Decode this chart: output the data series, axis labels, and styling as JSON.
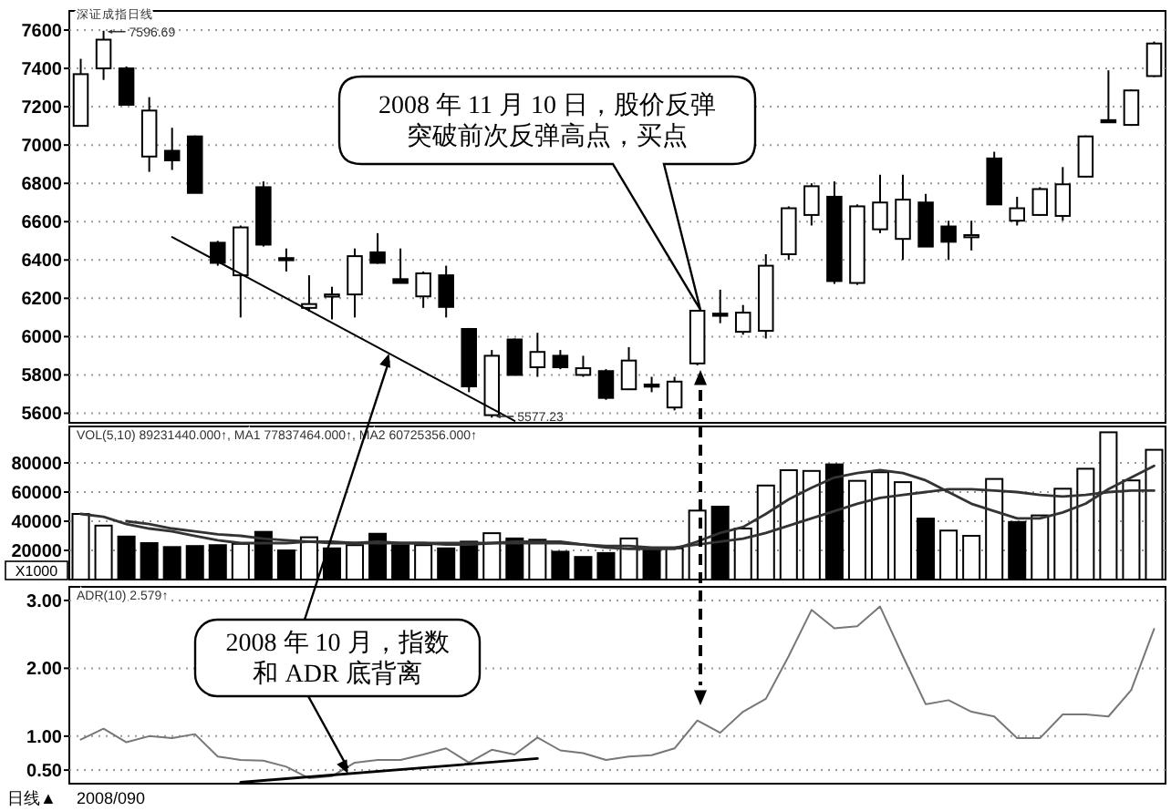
{
  "chart_data": [
    {
      "type": "candlestick",
      "title": "深证成指日线",
      "categories": [
        null,
        null,
        null,
        null,
        null,
        null,
        null,
        null,
        null,
        null,
        null,
        null,
        null,
        null,
        null,
        null,
        null,
        null,
        null,
        null,
        null,
        null,
        null,
        null,
        null,
        null,
        null,
        null,
        null,
        null,
        null,
        null,
        null,
        null,
        null,
        null,
        null,
        null,
        null,
        null,
        null,
        null,
        null,
        null,
        null,
        null,
        null,
        null
      ],
      "ohlc": [
        [
          7100,
          7450,
          7100,
          7370
        ],
        [
          7400,
          7596.69,
          7340,
          7550
        ],
        [
          7400,
          7410,
          7210,
          7210
        ],
        [
          6940,
          7250,
          6860,
          7180
        ],
        [
          6970,
          7090,
          6870,
          6920
        ],
        [
          7045,
          7050,
          6750,
          6750
        ],
        [
          6490,
          6500,
          6370,
          6385
        ],
        [
          6320,
          6580,
          6100,
          6570
        ],
        [
          6780,
          6810,
          6470,
          6480
        ],
        [
          6410,
          6460,
          6340,
          6400
        ],
        [
          6150,
          6320,
          6130,
          6170
        ],
        [
          6210,
          6260,
          6090,
          6220
        ],
        [
          6220,
          6460,
          6100,
          6420
        ],
        [
          6440,
          6540,
          6380,
          6385
        ],
        [
          6300,
          6460,
          6280,
          6280
        ],
        [
          6210,
          6340,
          6150,
          6330
        ],
        [
          6320,
          6370,
          6100,
          6155
        ],
        [
          6040,
          6045,
          5710,
          5740
        ],
        [
          5590,
          5930,
          5577.23,
          5900
        ],
        [
          5985,
          5990,
          5800,
          5800
        ],
        [
          5840,
          6020,
          5790,
          5920
        ],
        [
          5900,
          5930,
          5830,
          5840
        ],
        [
          5800,
          5900,
          5790,
          5835
        ],
        [
          5820,
          5830,
          5670,
          5680
        ],
        [
          5725,
          5945,
          5725,
          5875
        ],
        [
          5750,
          5790,
          5710,
          5745
        ],
        [
          5630,
          5790,
          5615,
          5765
        ],
        [
          5860,
          6140,
          5850,
          6135
        ],
        [
          6120,
          6245,
          6070,
          6115
        ],
        [
          6025,
          6165,
          6010,
          6125
        ],
        [
          6030,
          6430,
          5990,
          6370
        ],
        [
          6430,
          6680,
          6400,
          6670
        ],
        [
          6635,
          6800,
          6580,
          6785
        ],
        [
          6730,
          6810,
          6275,
          6290
        ],
        [
          6280,
          6690,
          6270,
          6680
        ],
        [
          6560,
          6845,
          6540,
          6700
        ],
        [
          6510,
          6845,
          6400,
          6715
        ],
        [
          6700,
          6745,
          6470,
          6470
        ],
        [
          6575,
          6605,
          6400,
          6495
        ],
        [
          6520,
          6605,
          6450,
          6530
        ],
        [
          6930,
          6965,
          6690,
          6690
        ],
        [
          6605,
          6730,
          6580,
          6670
        ],
        [
          6635,
          6780,
          6630,
          6770
        ],
        [
          6630,
          6885,
          6605,
          6795
        ],
        [
          6835,
          7050,
          6830,
          7045
        ],
        [
          7130,
          7390,
          7125,
          7125
        ],
        [
          7105,
          7290,
          7100,
          7285
        ],
        [
          7360,
          7540,
          7355,
          7530
        ]
      ],
      "series": [
        {
          "type": "line",
          "values": [
            null,
            null,
            null,
            null,
            6520,
            null,
            null,
            null,
            null,
            null,
            null,
            null,
            null,
            null,
            null,
            null,
            null,
            null,
            null,
            5560,
            null,
            null,
            null,
            null,
            null,
            null,
            null,
            null,
            null,
            null,
            null,
            null,
            null,
            null,
            null,
            null,
            null,
            null,
            null,
            null,
            null,
            null,
            null,
            null,
            null,
            null,
            null,
            null
          ],
          "color": "#000000"
        }
      ],
      "ylim": [
        5550,
        7700
      ],
      "yticks": [
        5600,
        5800,
        6000,
        6200,
        6400,
        6600,
        6800,
        7000,
        7200,
        7400,
        7600
      ],
      "grid": "y",
      "tick_labels": "y",
      "annotations": [
        "2008 年 11 月 10 日，股价反弹突破前次反弹高点，买点",
        "7596.69",
        "5577.23"
      ]
    },
    {
      "type": "bar",
      "title": "VOL(5,10) 89231440.000↑, MA1 77837464.000↑, MA2 60725356.000↑",
      "ylabel": "X1000",
      "categories": [
        null,
        null,
        null,
        null,
        null,
        null,
        null,
        null,
        null,
        null,
        null,
        null,
        null,
        null,
        null,
        null,
        null,
        null,
        null,
        null,
        null,
        null,
        null,
        null,
        null,
        null,
        null,
        null,
        null,
        null,
        null,
        null,
        null,
        null,
        null,
        null,
        null,
        null,
        null,
        null,
        null,
        null,
        null,
        null,
        null,
        null,
        null,
        null
      ],
      "series": [
        {
          "values": [
            45000,
            37000,
            29500,
            25000,
            22300,
            23000,
            23600,
            24500,
            32700,
            20000,
            29000,
            21400,
            23600,
            31400,
            23600,
            23600,
            21400,
            26000,
            31800,
            28200,
            27300,
            19100,
            15500,
            18200,
            28200,
            21400,
            21400,
            47300,
            50000,
            35000,
            64500,
            75000,
            74500,
            79000,
            67700,
            73600,
            66800,
            41800,
            33600,
            30000,
            69000,
            39500,
            44000,
            62300,
            76000,
            101000,
            68000,
            89000
          ],
          "colors": [
            "#ffffff",
            "#ffffff",
            "#000000",
            "#000000",
            "#000000",
            "#000000",
            "#000000",
            "#ffffff",
            "#000000",
            "#000000",
            "#ffffff",
            "#000000",
            "#ffffff",
            "#000000",
            "#000000",
            "#ffffff",
            "#000000",
            "#000000",
            "#ffffff",
            "#000000",
            "#ffffff",
            "#000000",
            "#000000",
            "#000000",
            "#ffffff",
            "#000000",
            "#ffffff",
            "#ffffff",
            "#000000",
            "#ffffff",
            "#ffffff",
            "#ffffff",
            "#ffffff",
            "#000000",
            "#ffffff",
            "#ffffff",
            "#ffffff",
            "#000000",
            "#ffffff",
            "#ffffff",
            "#ffffff",
            "#000000",
            "#ffffff",
            "#ffffff",
            "#ffffff",
            "#ffffff",
            "#ffffff",
            "#ffffff"
          ]
        },
        {
          "type": "line",
          "color": "#333333",
          "values": [
            45000,
            43000,
            38000,
            35000,
            33000,
            30000,
            27000,
            25000,
            25000,
            25000,
            26000,
            26000,
            25000,
            26000,
            25000,
            25000,
            24000,
            24000,
            25000,
            26000,
            26000,
            26000,
            24000,
            22000,
            21000,
            21000,
            21000,
            26000,
            32000,
            36000,
            45000,
            55000,
            63000,
            70000,
            73000,
            75000,
            73000,
            68000,
            60000,
            52000,
            47000,
            42000,
            42000,
            46000,
            52000,
            62000,
            70000,
            78000
          ]
        },
        {
          "type": "line",
          "color": "#333333",
          "values": [
            null,
            null,
            40000,
            38000,
            35000,
            33000,
            31000,
            30000,
            28000,
            27000,
            26000,
            25000,
            25000,
            25000,
            25000,
            25000,
            25000,
            25000,
            25000,
            25000,
            25000,
            25000,
            24000,
            23000,
            23000,
            22000,
            22000,
            24000,
            26000,
            28000,
            32000,
            37000,
            42000,
            47000,
            52000,
            56000,
            58000,
            60000,
            62000,
            62000,
            61000,
            60000,
            58000,
            57000,
            58000,
            60000,
            61000,
            61000
          ]
        }
      ],
      "ylim": [
        0,
        105000
      ],
      "yticks": [
        20000,
        40000,
        60000,
        80000
      ],
      "grid": "y",
      "tick_labels": "y"
    },
    {
      "type": "line",
      "title": "ADR(10) 2.579↑",
      "categories": [
        null,
        null,
        null,
        null,
        null,
        null,
        null,
        null,
        null,
        null,
        null,
        null,
        null,
        null,
        null,
        null,
        null,
        null,
        null,
        null,
        null,
        null,
        null,
        null,
        null,
        null,
        null,
        null,
        null,
        null,
        null,
        null,
        null,
        null,
        null,
        null,
        null,
        null,
        null,
        null,
        null,
        null,
        null,
        null,
        null,
        null,
        null,
        null
      ],
      "series": [
        {
          "color": "#777777",
          "values": [
            0.95,
            1.11,
            0.91,
            1.0,
            0.97,
            1.03,
            0.7,
            0.65,
            0.64,
            0.55,
            0.38,
            0.41,
            0.61,
            0.65,
            0.65,
            0.73,
            0.82,
            0.61,
            0.8,
            0.73,
            0.98,
            0.79,
            0.75,
            0.65,
            0.7,
            0.72,
            0.82,
            1.23,
            1.05,
            1.36,
            1.55,
            2.18,
            2.86,
            2.59,
            2.62,
            2.91,
            2.18,
            1.47,
            1.53,
            1.36,
            1.29,
            0.97,
            0.97,
            1.32,
            1.32,
            1.29,
            1.68,
            2.58
          ]
        },
        {
          "type": "line",
          "values": [
            null,
            null,
            null,
            null,
            null,
            null,
            null,
            0.32,
            null,
            null,
            null,
            null,
            null,
            null,
            null,
            null,
            null,
            null,
            null,
            null,
            0.67,
            null,
            null,
            null,
            null,
            null,
            null,
            null,
            null,
            null,
            null,
            null,
            null,
            null,
            null,
            null,
            null,
            null,
            null,
            null,
            null,
            null,
            null,
            null,
            null,
            null,
            null,
            null
          ],
          "color": "#000000"
        }
      ],
      "ylim": [
        0.3,
        3.2
      ],
      "yticks": [
        {
          "value": 0.5,
          "label": "0.50"
        },
        {
          "value": 1,
          "label": "1.00"
        },
        {
          "value": 2,
          "label": "2.00"
        },
        {
          "value": 3,
          "label": "3.00"
        }
      ],
      "grid": "y",
      "tick_labels": "y",
      "annotations": [
        "2008 年 10 月，指数和 ADR 底背离",
        "日线▲",
        "2008/090"
      ]
    }
  ]
}
